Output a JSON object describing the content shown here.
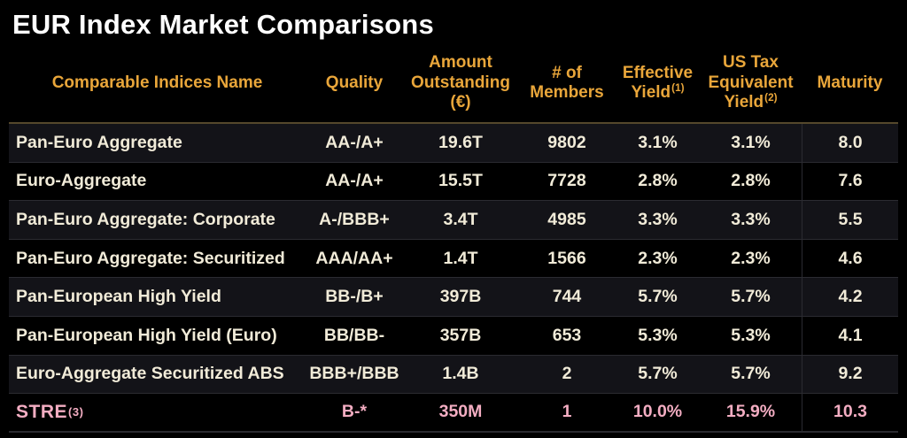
{
  "title": "EUR Index Market Comparisons",
  "colors": {
    "background": "#000000",
    "header_text": "#E9A63A",
    "body_text": "#F1EBD8",
    "highlight_text": "#F3ADC2",
    "alt_row_background": "#131318",
    "row_divider": "#2B2B31",
    "header_divider": "#55482C"
  },
  "table": {
    "columns": [
      {
        "label": "Comparable Indices Name",
        "superscript": ""
      },
      {
        "label": "Quality",
        "superscript": ""
      },
      {
        "label": "Amount Outstanding (€)",
        "superscript": ""
      },
      {
        "label": "# of Members",
        "superscript": ""
      },
      {
        "label": "Effective Yield",
        "superscript": "(1)"
      },
      {
        "label": "US Tax Equivalent Yield",
        "superscript": "(2)"
      },
      {
        "label": "Maturity",
        "superscript": ""
      }
    ],
    "rows": [
      {
        "name": "Pan-Euro Aggregate",
        "name_superscript": "",
        "quality": "AA-/A+",
        "amount": "19.6T",
        "members": "9802",
        "effective_yield": "3.1%",
        "us_tax_equivalent_yield": "3.1%",
        "maturity": "8.0",
        "highlight": false
      },
      {
        "name": "Euro-Aggregate",
        "name_superscript": "",
        "quality": "AA-/A+",
        "amount": "15.5T",
        "members": "7728",
        "effective_yield": "2.8%",
        "us_tax_equivalent_yield": "2.8%",
        "maturity": "7.6",
        "highlight": false
      },
      {
        "name": "Pan-Euro Aggregate: Corporate",
        "name_superscript": "",
        "quality": "A-/BBB+",
        "amount": "3.4T",
        "members": "4985",
        "effective_yield": "3.3%",
        "us_tax_equivalent_yield": "3.3%",
        "maturity": "5.5",
        "highlight": false
      },
      {
        "name": "Pan-Euro Aggregate: Securitized",
        "name_superscript": "",
        "quality": "AAA/AA+",
        "amount": "1.4T",
        "members": "1566",
        "effective_yield": "2.3%",
        "us_tax_equivalent_yield": "2.3%",
        "maturity": "4.6",
        "highlight": false
      },
      {
        "name": "Pan-European High Yield",
        "name_superscript": "",
        "quality": "BB-/B+",
        "amount": "397B",
        "members": "744",
        "effective_yield": "5.7%",
        "us_tax_equivalent_yield": "5.7%",
        "maturity": "4.2",
        "highlight": false
      },
      {
        "name": "Pan-European High Yield (Euro)",
        "name_superscript": "",
        "quality": "BB/BB-",
        "amount": "357B",
        "members": "653",
        "effective_yield": "5.3%",
        "us_tax_equivalent_yield": "5.3%",
        "maturity": "4.1",
        "highlight": false
      },
      {
        "name": "Euro-Aggregate Securitized ABS",
        "name_superscript": "",
        "quality": "BBB+/BBB",
        "amount": "1.4B",
        "members": "2",
        "effective_yield": "5.7%",
        "us_tax_equivalent_yield": "5.7%",
        "maturity": "9.2",
        "highlight": false
      },
      {
        "name": "STRE",
        "name_superscript": "(3)",
        "quality": "B-*",
        "amount": "350M",
        "members": "1",
        "effective_yield": "10.0%",
        "us_tax_equivalent_yield": "15.9%",
        "maturity": "10.3",
        "highlight": true
      }
    ]
  }
}
